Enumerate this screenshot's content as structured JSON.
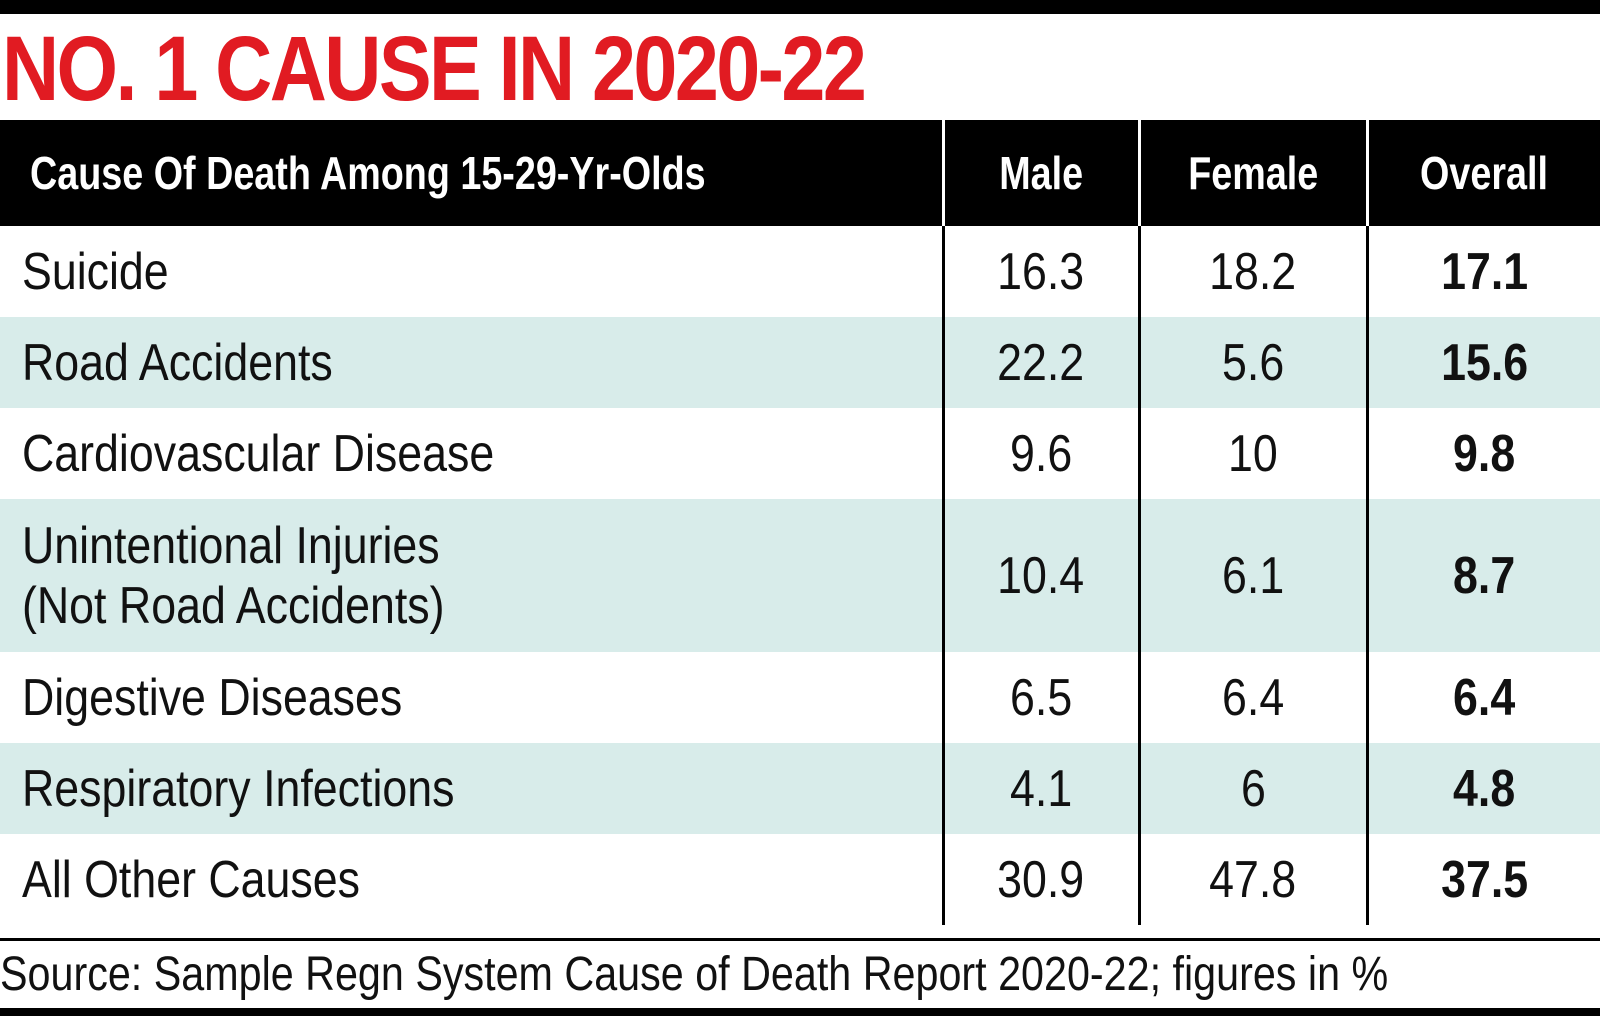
{
  "title": "NO. 1 CAUSE IN 2020-22",
  "colors": {
    "title": "#e11b22",
    "header_bg": "#000000",
    "header_text": "#ffffff",
    "row_shade": "#d8ecea"
  },
  "chart_data": {
    "type": "table",
    "title": "NO. 1 CAUSE IN 2020-22",
    "columns": [
      "Cause Of Death Among 15-29-Yr-Olds",
      "Male",
      "Female",
      "Overall"
    ],
    "rows": [
      {
        "cause": "Suicide",
        "male": "16.3",
        "female": "18.2",
        "overall": "17.1"
      },
      {
        "cause": "Road Accidents",
        "male": "22.2",
        "female": "5.6",
        "overall": "15.6"
      },
      {
        "cause": "Cardiovascular Disease",
        "male": "9.6",
        "female": "10",
        "overall": "9.8"
      },
      {
        "cause": "Unintentional Injuries\n(Not Road Accidents)",
        "male": "10.4",
        "female": "6.1",
        "overall": "8.7"
      },
      {
        "cause": "Digestive Diseases",
        "male": "6.5",
        "female": "6.4",
        "overall": "6.4"
      },
      {
        "cause": "Respiratory Infections",
        "male": "4.1",
        "female": "6",
        "overall": "4.8"
      },
      {
        "cause": "All Other Causes",
        "male": "30.9",
        "female": "47.8",
        "overall": "37.5"
      }
    ],
    "source": "Source: Sample Regn System Cause of Death Report 2020-22; figures in %"
  }
}
